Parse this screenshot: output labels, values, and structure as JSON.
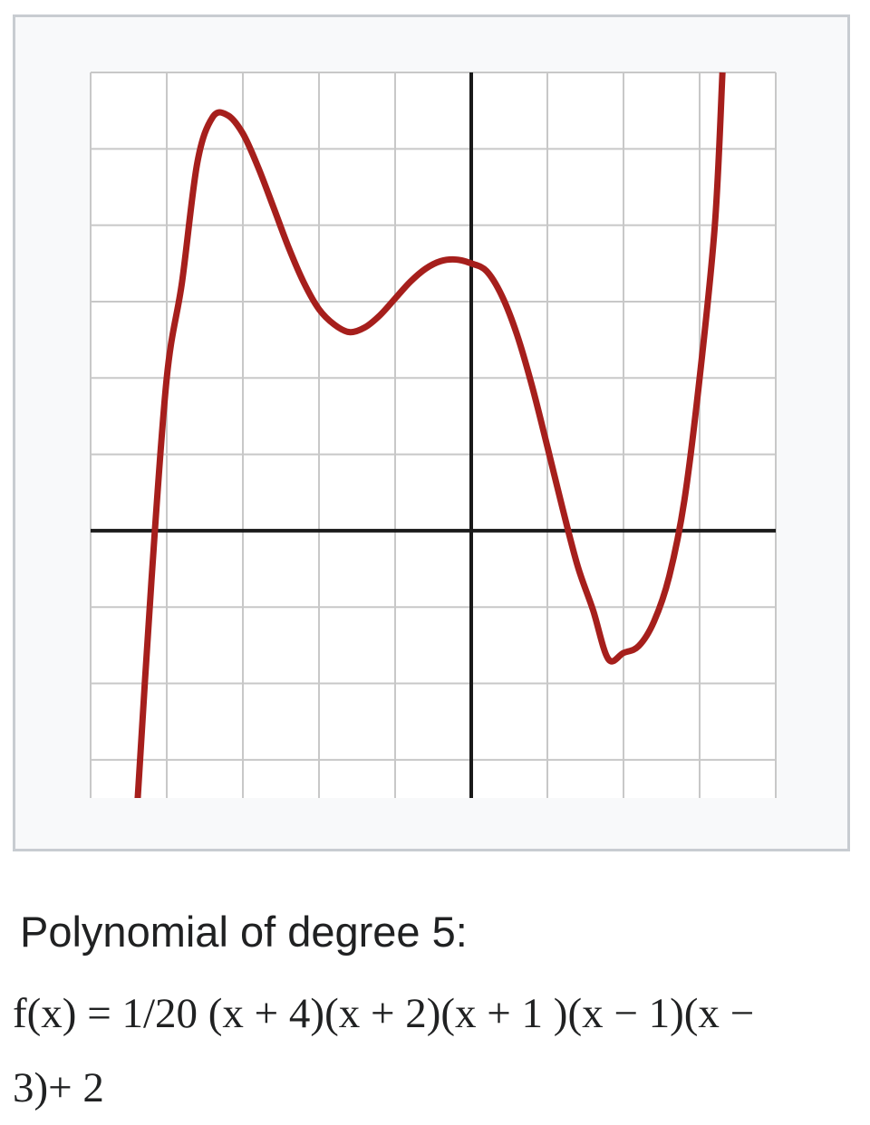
{
  "colors": {
    "curve": "#a61f1c",
    "grid": "#c8c8c8",
    "axis": "#1a1a1a",
    "plot_background": "#ffffff",
    "frame_background": "#f8f9fa",
    "frame_border": "#c8ccd1"
  },
  "caption": {
    "title": "Polynomial of degree 5:",
    "formula": "f(x) = 1/20 (x + 4)(x + 2)(x + 1 )(x − 1)(x − 3)+ 2"
  },
  "chart_data": {
    "type": "line",
    "title": "",
    "xlabel": "",
    "ylabel": "",
    "xlim": [
      -5,
      4
    ],
    "ylim": [
      -3.5,
      6
    ],
    "grid": true,
    "legend": "none",
    "series": [
      {
        "x": [
          -4.4,
          -4.2,
          -4.0,
          -3.8,
          -3.6,
          -3.4,
          -3.2,
          -3.0,
          -2.8,
          -2.6,
          -2.4,
          -2.2,
          -2.0,
          -1.8,
          -1.6,
          -1.4,
          -1.2,
          -1.0,
          -0.8,
          -0.6,
          -0.4,
          -0.2,
          0.0,
          0.2,
          0.4,
          0.6,
          0.8,
          1.0,
          1.2,
          1.4,
          1.6,
          1.8,
          2.0,
          2.2,
          2.4,
          2.6,
          2.8,
          3.0,
          3.2,
          3.3
        ],
        "y": [
          -3.8,
          -0.64,
          2.0,
          3.25,
          4.81,
          5.41,
          5.44,
          5.2,
          4.76,
          4.24,
          3.71,
          3.25,
          2.9,
          2.7,
          2.6,
          2.66,
          2.82,
          3.04,
          3.26,
          3.43,
          3.53,
          3.55,
          3.5,
          3.4,
          3.08,
          2.57,
          1.89,
          1.1,
          0.29,
          -0.47,
          -1.04,
          -1.68,
          -1.6,
          -1.51,
          -1.19,
          -0.6,
          0.4,
          2.0,
          4.0,
          6.0
        ]
      }
    ]
  }
}
